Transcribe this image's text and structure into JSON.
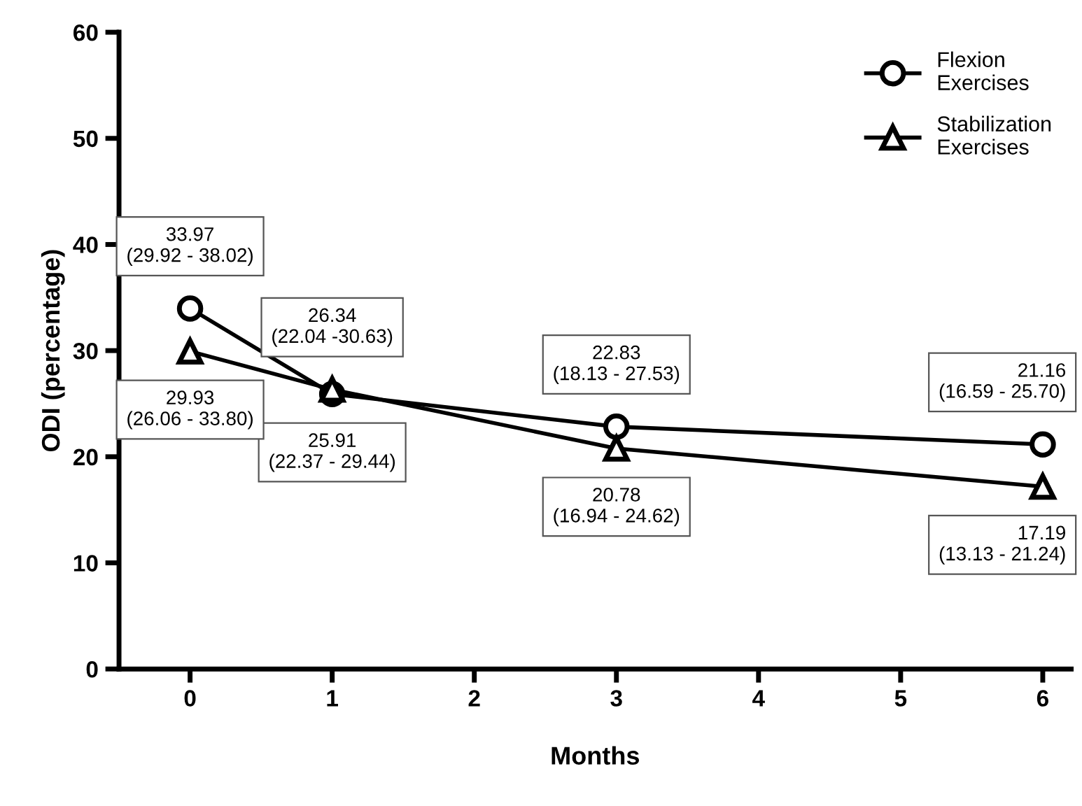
{
  "chart_data": {
    "type": "line",
    "xlabel": "Months",
    "ylabel": "ODI (percentage)",
    "x": [
      0,
      1,
      3,
      6
    ],
    "series": [
      {
        "name": "Flexion Exercises",
        "color": "#000000",
        "marker": "circle",
        "values": [
          33.97,
          25.91,
          22.83,
          21.16
        ],
        "value_labels": [
          "33.97\n(29.92 - 38.02)",
          "25.91\n(22.37 - 29.44)",
          "22.83\n(18.13 - 27.53)",
          "21.16\n(16.59 - 25.70)"
        ]
      },
      {
        "name": "Stabilization Exercises",
        "color": "#000000",
        "marker": "triangle",
        "values": [
          29.93,
          26.34,
          20.78,
          17.19
        ],
        "value_labels": [
          "29.93\n(26.06 - 33.80)",
          "26.34\n(22.04 -30.63)",
          "20.78\n(16.94 - 24.62)",
          "17.19\n(13.13 - 21.24)"
        ]
      }
    ],
    "xlim": [
      -0.5,
      6.2
    ],
    "xticks": [
      0,
      1,
      2,
      3,
      4,
      5,
      6
    ],
    "ylim": [
      0,
      60
    ],
    "yticks": [
      0,
      10,
      20,
      30,
      40,
      50,
      60
    ],
    "grid": false,
    "legend": "top right",
    "line_style": "solid"
  }
}
